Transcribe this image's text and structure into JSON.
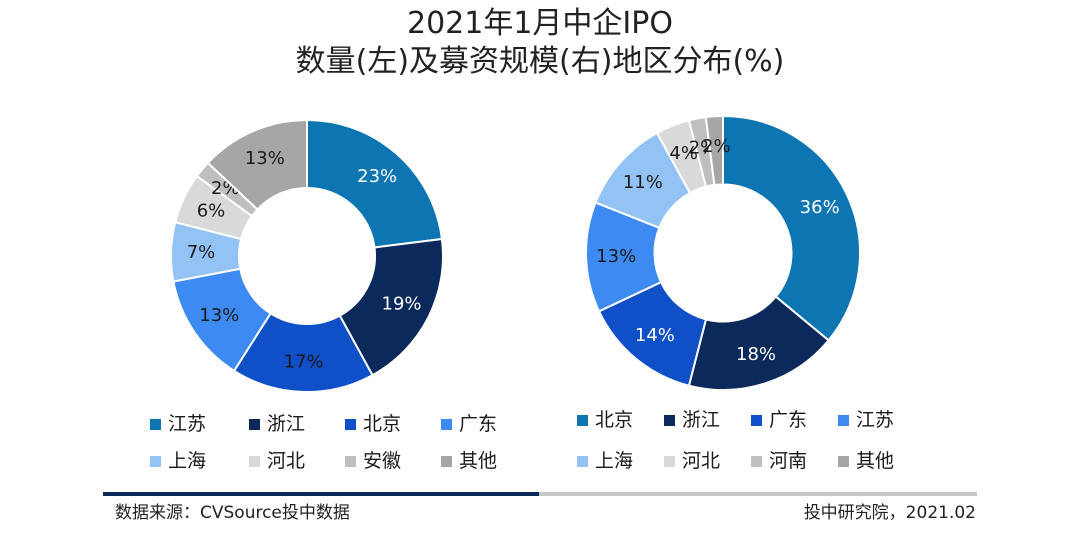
{
  "title_line1": "2021年1月中企IPO",
  "title_line2": "数量(左)及募资规模(右)地区分布(%)",
  "chart_data": [
    {
      "type": "pie",
      "name": "left-donut",
      "subject": "数量",
      "labels": [
        "江苏",
        "浙江",
        "北京",
        "广东",
        "上海",
        "河北",
        "安徽",
        "其他"
      ],
      "values": [
        23,
        19,
        17,
        13,
        7,
        6,
        2,
        13
      ],
      "colors": [
        "#0E75B3",
        "#0B2A5B",
        "#0F4FC8",
        "#3D8BF2",
        "#93C2F5",
        "#D9D9D9",
        "#BFBFBF",
        "#A6A6A6"
      ],
      "label_colors": [
        "#ffffff",
        "#ffffff",
        "#1a1a1a",
        "#1a1a1a",
        "#1a1a1a",
        "#1a1a1a",
        "#1a1a1a",
        "#1a1a1a"
      ],
      "legend_position": "bottom"
    },
    {
      "type": "pie",
      "name": "right-donut",
      "subject": "募资规模",
      "labels": [
        "北京",
        "浙江",
        "广东",
        "江苏",
        "上海",
        "河北",
        "河南",
        "其他"
      ],
      "values": [
        36,
        18,
        14,
        13,
        11,
        4,
        2,
        2
      ],
      "colors": [
        "#0E75B3",
        "#0B2A5B",
        "#0F4FC8",
        "#3D8BF2",
        "#93C2F5",
        "#D9D9D9",
        "#BFBFBF",
        "#A6A6A6"
      ],
      "label_colors": [
        "#ffffff",
        "#ffffff",
        "#ffffff",
        "#1a1a1a",
        "#1a1a1a",
        "#1a1a1a",
        "#1a1a1a",
        "#1a1a1a"
      ],
      "legend_position": "bottom"
    }
  ],
  "footer": {
    "source": "数据来源：CVSource投中数据",
    "credit": "投中研究院，2021.02"
  }
}
